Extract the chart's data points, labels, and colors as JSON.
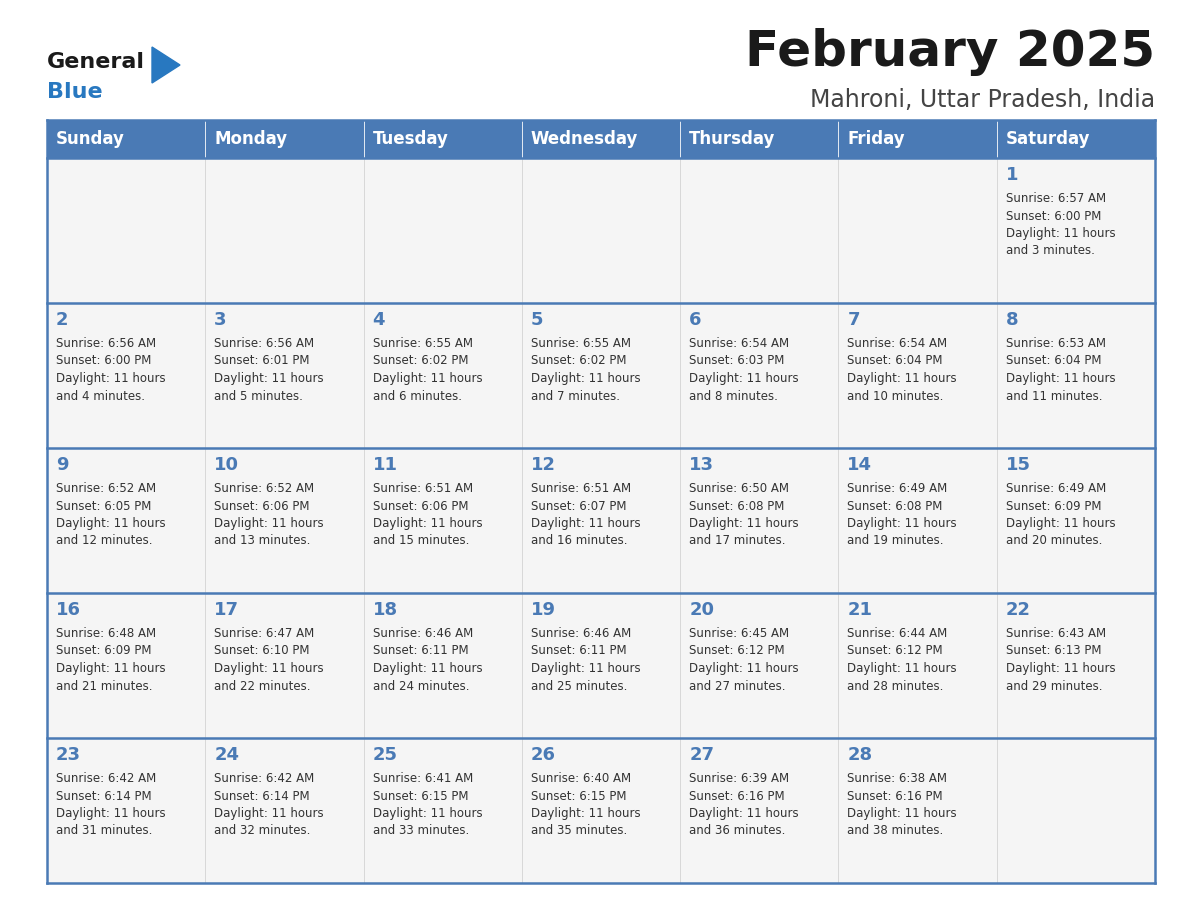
{
  "title": "February 2025",
  "subtitle": "Mahroni, Uttar Pradesh, India",
  "header_bg": "#4a7ab5",
  "header_text": "#ffffff",
  "days_of_week": [
    "Sunday",
    "Monday",
    "Tuesday",
    "Wednesday",
    "Thursday",
    "Friday",
    "Saturday"
  ],
  "cell_bg": "#f5f5f5",
  "border_color": "#4a7ab5",
  "day_num_color": "#4a7ab5",
  "text_color": "#333333",
  "logo_general_color": "#1a1a1a",
  "logo_blue_color": "#2878c0",
  "logo_triangle_color": "#2878c0",
  "calendar": [
    [
      {
        "day": null,
        "sunrise": null,
        "sunset": null,
        "daylight": null
      },
      {
        "day": null,
        "sunrise": null,
        "sunset": null,
        "daylight": null
      },
      {
        "day": null,
        "sunrise": null,
        "sunset": null,
        "daylight": null
      },
      {
        "day": null,
        "sunrise": null,
        "sunset": null,
        "daylight": null
      },
      {
        "day": null,
        "sunrise": null,
        "sunset": null,
        "daylight": null
      },
      {
        "day": null,
        "sunrise": null,
        "sunset": null,
        "daylight": null
      },
      {
        "day": 1,
        "sunrise": "6:57 AM",
        "sunset": "6:00 PM",
        "daylight": "11 hours\nand 3 minutes."
      }
    ],
    [
      {
        "day": 2,
        "sunrise": "6:56 AM",
        "sunset": "6:00 PM",
        "daylight": "11 hours\nand 4 minutes."
      },
      {
        "day": 3,
        "sunrise": "6:56 AM",
        "sunset": "6:01 PM",
        "daylight": "11 hours\nand 5 minutes."
      },
      {
        "day": 4,
        "sunrise": "6:55 AM",
        "sunset": "6:02 PM",
        "daylight": "11 hours\nand 6 minutes."
      },
      {
        "day": 5,
        "sunrise": "6:55 AM",
        "sunset": "6:02 PM",
        "daylight": "11 hours\nand 7 minutes."
      },
      {
        "day": 6,
        "sunrise": "6:54 AM",
        "sunset": "6:03 PM",
        "daylight": "11 hours\nand 8 minutes."
      },
      {
        "day": 7,
        "sunrise": "6:54 AM",
        "sunset": "6:04 PM",
        "daylight": "11 hours\nand 10 minutes."
      },
      {
        "day": 8,
        "sunrise": "6:53 AM",
        "sunset": "6:04 PM",
        "daylight": "11 hours\nand 11 minutes."
      }
    ],
    [
      {
        "day": 9,
        "sunrise": "6:52 AM",
        "sunset": "6:05 PM",
        "daylight": "11 hours\nand 12 minutes."
      },
      {
        "day": 10,
        "sunrise": "6:52 AM",
        "sunset": "6:06 PM",
        "daylight": "11 hours\nand 13 minutes."
      },
      {
        "day": 11,
        "sunrise": "6:51 AM",
        "sunset": "6:06 PM",
        "daylight": "11 hours\nand 15 minutes."
      },
      {
        "day": 12,
        "sunrise": "6:51 AM",
        "sunset": "6:07 PM",
        "daylight": "11 hours\nand 16 minutes."
      },
      {
        "day": 13,
        "sunrise": "6:50 AM",
        "sunset": "6:08 PM",
        "daylight": "11 hours\nand 17 minutes."
      },
      {
        "day": 14,
        "sunrise": "6:49 AM",
        "sunset": "6:08 PM",
        "daylight": "11 hours\nand 19 minutes."
      },
      {
        "day": 15,
        "sunrise": "6:49 AM",
        "sunset": "6:09 PM",
        "daylight": "11 hours\nand 20 minutes."
      }
    ],
    [
      {
        "day": 16,
        "sunrise": "6:48 AM",
        "sunset": "6:09 PM",
        "daylight": "11 hours\nand 21 minutes."
      },
      {
        "day": 17,
        "sunrise": "6:47 AM",
        "sunset": "6:10 PM",
        "daylight": "11 hours\nand 22 minutes."
      },
      {
        "day": 18,
        "sunrise": "6:46 AM",
        "sunset": "6:11 PM",
        "daylight": "11 hours\nand 24 minutes."
      },
      {
        "day": 19,
        "sunrise": "6:46 AM",
        "sunset": "6:11 PM",
        "daylight": "11 hours\nand 25 minutes."
      },
      {
        "day": 20,
        "sunrise": "6:45 AM",
        "sunset": "6:12 PM",
        "daylight": "11 hours\nand 27 minutes."
      },
      {
        "day": 21,
        "sunrise": "6:44 AM",
        "sunset": "6:12 PM",
        "daylight": "11 hours\nand 28 minutes."
      },
      {
        "day": 22,
        "sunrise": "6:43 AM",
        "sunset": "6:13 PM",
        "daylight": "11 hours\nand 29 minutes."
      }
    ],
    [
      {
        "day": 23,
        "sunrise": "6:42 AM",
        "sunset": "6:14 PM",
        "daylight": "11 hours\nand 31 minutes."
      },
      {
        "day": 24,
        "sunrise": "6:42 AM",
        "sunset": "6:14 PM",
        "daylight": "11 hours\nand 32 minutes."
      },
      {
        "day": 25,
        "sunrise": "6:41 AM",
        "sunset": "6:15 PM",
        "daylight": "11 hours\nand 33 minutes."
      },
      {
        "day": 26,
        "sunrise": "6:40 AM",
        "sunset": "6:15 PM",
        "daylight": "11 hours\nand 35 minutes."
      },
      {
        "day": 27,
        "sunrise": "6:39 AM",
        "sunset": "6:16 PM",
        "daylight": "11 hours\nand 36 minutes."
      },
      {
        "day": 28,
        "sunrise": "6:38 AM",
        "sunset": "6:16 PM",
        "daylight": "11 hours\nand 38 minutes."
      },
      {
        "day": null,
        "sunrise": null,
        "sunset": null,
        "daylight": null
      }
    ]
  ]
}
